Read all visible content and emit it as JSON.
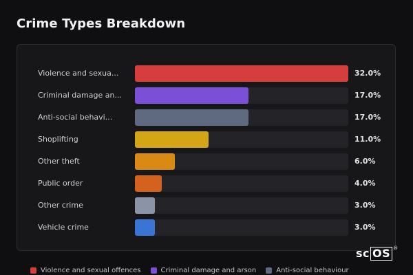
{
  "title": "Crime Types Breakdown",
  "chart_data": {
    "type": "bar",
    "orientation": "horizontal",
    "title": "Crime Types Breakdown",
    "unit": "%",
    "xlim": [
      0,
      32
    ],
    "categories": [
      "Violence and sexua...",
      "Criminal damage an...",
      "Anti-social behavi...",
      "Shoplifting",
      "Other theft",
      "Public order",
      "Other crime",
      "Vehicle crime"
    ],
    "values": [
      32.0,
      17.0,
      17.0,
      11.0,
      6.0,
      4.0,
      3.0,
      3.0
    ],
    "value_labels": [
      "32.0%",
      "17.0%",
      "17.0%",
      "11.0%",
      "6.0%",
      "4.0%",
      "3.0%",
      "3.0%"
    ],
    "colors": [
      "#d63d3d",
      "#7b4fd6",
      "#5f6a80",
      "#d4a514",
      "#d98a14",
      "#d4621c",
      "#8a94a6",
      "#3a74d4"
    ],
    "legend": {
      "placement": "bottom",
      "entries": [
        {
          "label": "Violence and sexual offences",
          "color": "#d63d3d"
        },
        {
          "label": "Criminal damage and arson",
          "color": "#7b4fd6"
        },
        {
          "label": "Anti-social behaviour",
          "color": "#5f6a80"
        }
      ]
    }
  },
  "logo": {
    "text_plain": "sc",
    "text_boxed": "OS",
    "mark": "®"
  }
}
